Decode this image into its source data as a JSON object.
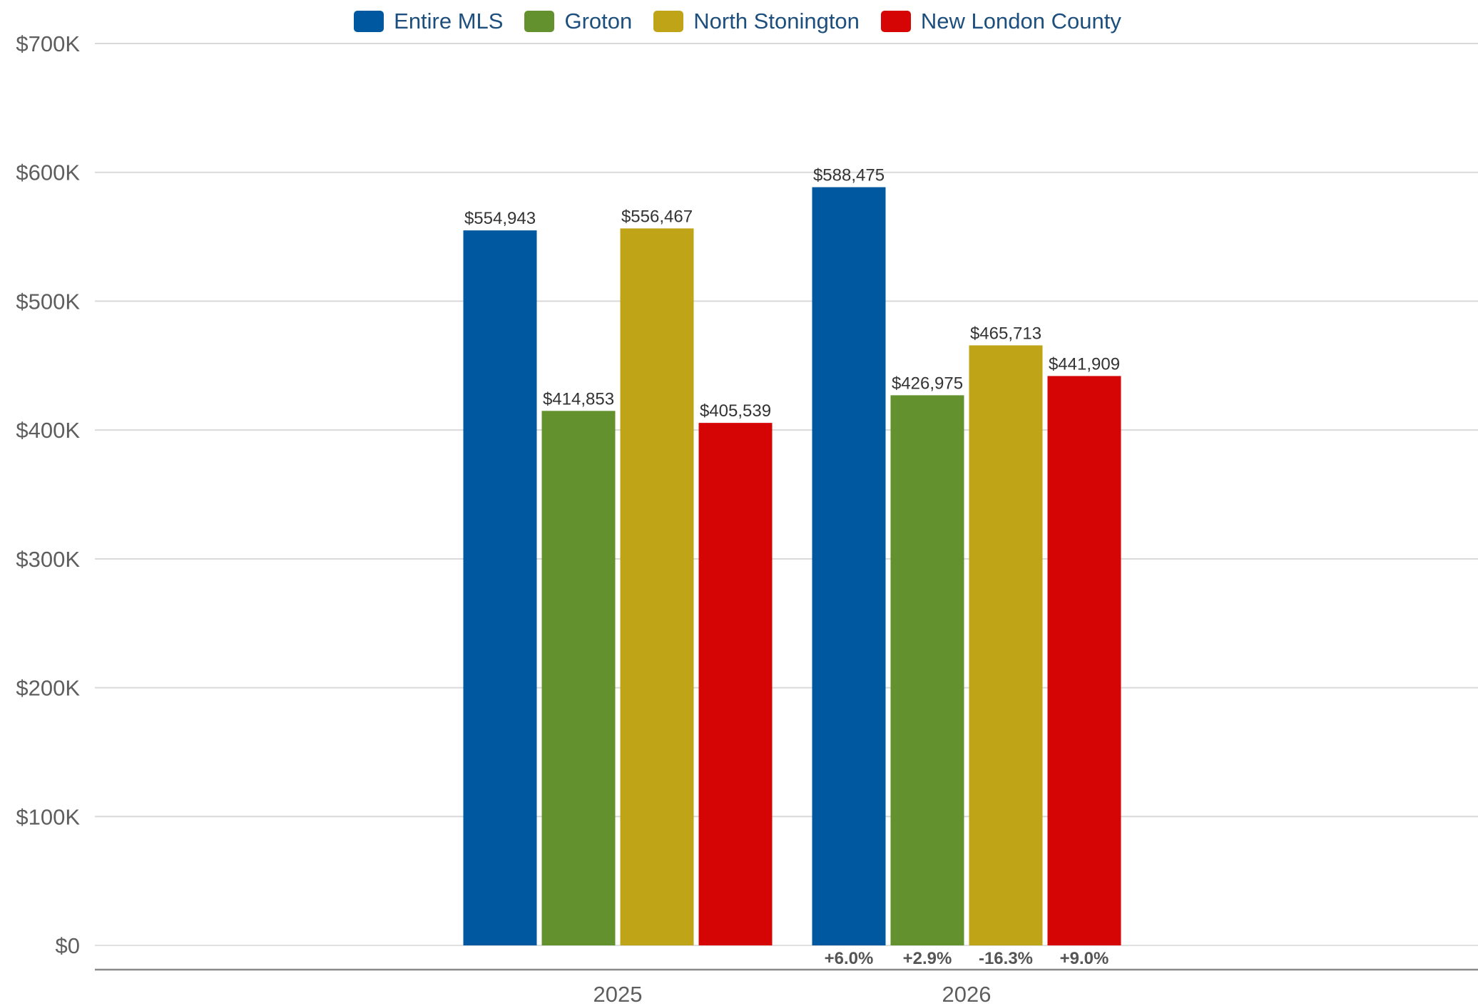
{
  "chart_data": {
    "type": "bar",
    "title": "",
    "xlabel": "",
    "ylabel": "",
    "categories": [
      "2025",
      "2026"
    ],
    "ylim": [
      0,
      700000
    ],
    "y_ticks": [
      {
        "value": 0,
        "label": "$0"
      },
      {
        "value": 100000,
        "label": "$100K"
      },
      {
        "value": 200000,
        "label": "$200K"
      },
      {
        "value": 300000,
        "label": "$300K"
      },
      {
        "value": 400000,
        "label": "$400K"
      },
      {
        "value": 500000,
        "label": "$500K"
      },
      {
        "value": 600000,
        "label": "$600K"
      },
      {
        "value": 700000,
        "label": "$700K"
      }
    ],
    "grid": true,
    "legend_position": "top-center",
    "series": [
      {
        "name": "Entire MLS",
        "color": "#0059a0",
        "values": [
          554943,
          588475
        ],
        "labels": [
          "$554,943",
          "$588,475"
        ],
        "change": "+6.0%"
      },
      {
        "name": "Groton",
        "color": "#63912d",
        "values": [
          414853,
          426975
        ],
        "labels": [
          "$414,853",
          "$426,975"
        ],
        "change": "+2.9%"
      },
      {
        "name": "North Stonington",
        "color": "#c0a417",
        "values": [
          556467,
          465713
        ],
        "labels": [
          "$556,467",
          "$465,713"
        ],
        "change": "-16.3%"
      },
      {
        "name": "New London County",
        "color": "#d50505",
        "values": [
          405539,
          441909
        ],
        "labels": [
          "$405,539",
          "$441,909"
        ],
        "change": "+9.0%"
      }
    ]
  }
}
